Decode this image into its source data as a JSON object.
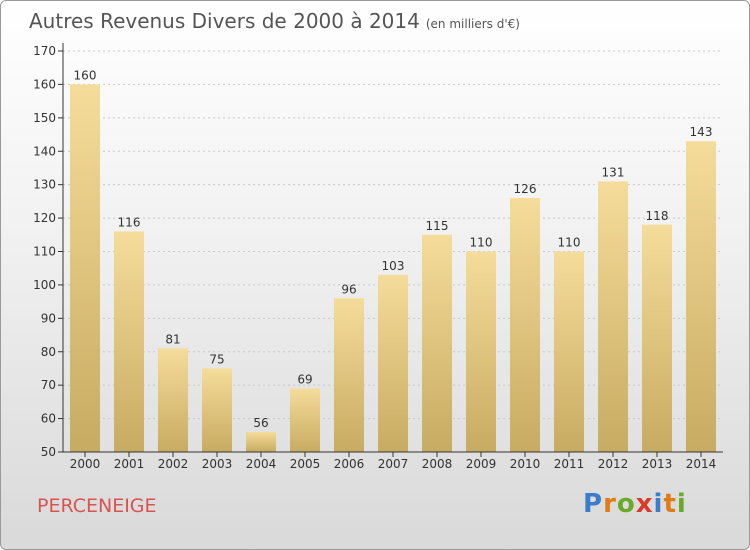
{
  "header": {
    "title": "Autres Revenus Divers de 2000 à 2014",
    "subtitle": "(en milliers d'€)"
  },
  "footer": {
    "commune": "PERCENEIGE",
    "logo_letters": [
      "P",
      "r",
      "o",
      "x",
      "i",
      "t",
      "i"
    ]
  },
  "colors": {
    "bar_light": "#f5dc9a",
    "bar_dark": "#c8ab62",
    "axis": "#333333",
    "grid": "#c8c8c8",
    "title": "#555555",
    "commune": "#d9534f",
    "logo": [
      "#3a7dc9",
      "#e07b16",
      "#6aaa2a",
      "#d93a2a",
      "#3a7dc9",
      "#e07b16",
      "#6aaa2a"
    ]
  },
  "chart_data": {
    "type": "bar",
    "title": "Autres Revenus Divers de 2000 à 2014",
    "subtitle": "(en milliers d'€)",
    "xlabel": "",
    "ylabel": "",
    "categories": [
      "2000",
      "2001",
      "2002",
      "2003",
      "2004",
      "2005",
      "2006",
      "2007",
      "2008",
      "2009",
      "2010",
      "2011",
      "2012",
      "2013",
      "2014"
    ],
    "values": [
      160,
      116,
      81,
      75,
      56,
      69,
      96,
      103,
      115,
      110,
      126,
      110,
      131,
      118,
      143
    ],
    "ylim": [
      50,
      170
    ],
    "yticks": [
      50,
      60,
      70,
      80,
      90,
      100,
      110,
      120,
      130,
      140,
      150,
      160,
      170
    ],
    "grid": "horizontal",
    "legend": "none",
    "data_labels": true
  }
}
